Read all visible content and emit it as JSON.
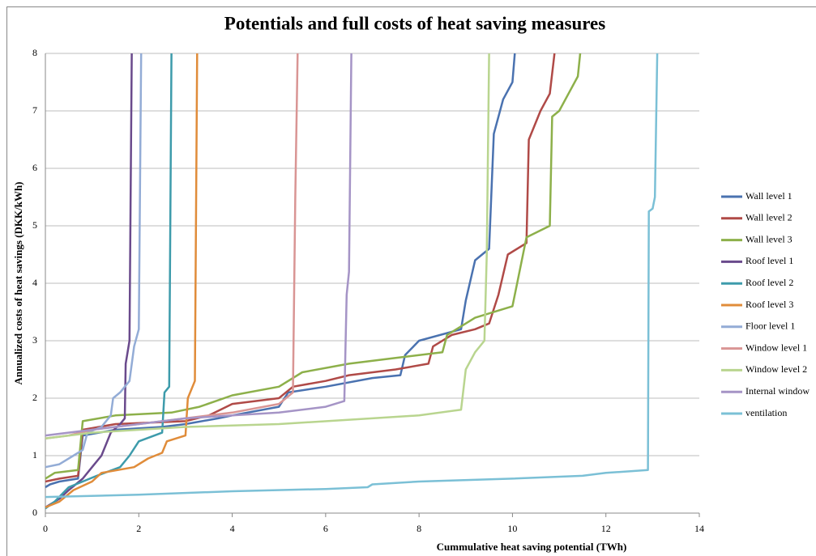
{
  "chart_data": {
    "type": "line",
    "title": "Potentials and full costs of heat saving measures",
    "x_label": "Cummulative heat saving potential (TWh)",
    "y_label": "Annualized  costs of heat savings (DKK/kWh)",
    "xlim": [
      0,
      14
    ],
    "ylim": [
      0,
      8
    ],
    "xticks": [
      0,
      2,
      4,
      6,
      8,
      10,
      12,
      14
    ],
    "yticks": [
      0,
      1,
      2,
      3,
      4,
      5,
      6,
      7,
      8
    ],
    "grid": true,
    "legend": "right",
    "series": [
      {
        "name": "Wall level 1",
        "color": "#4a72b0",
        "x": [
          0,
          0.1,
          0.3,
          0.7,
          0.8,
          1.5,
          2.5,
          3,
          3.7,
          4,
          5,
          5.2,
          6,
          7,
          7.6,
          7.7,
          8,
          8.9,
          9,
          9.2,
          9.5,
          9.6,
          9.8,
          10,
          10.05
        ],
        "values": [
          0.45,
          0.5,
          0.55,
          0.6,
          1.35,
          1.45,
          1.5,
          1.55,
          1.65,
          1.7,
          1.85,
          2.1,
          2.2,
          2.35,
          2.4,
          2.75,
          3.0,
          3.2,
          3.7,
          4.4,
          4.6,
          6.6,
          7.2,
          7.5,
          8
        ]
      },
      {
        "name": "Wall level 2",
        "color": "#b04a47",
        "x": [
          0,
          0.3,
          0.7,
          0.8,
          1.5,
          3,
          3.5,
          4,
          5,
          5.3,
          6,
          6.5,
          7.5,
          8.2,
          8.3,
          8.7,
          9.2,
          9.5,
          9.7,
          9.9,
          10.3,
          10.35,
          10.6,
          10.8,
          10.9
        ],
        "values": [
          0.55,
          0.6,
          0.65,
          1.45,
          1.55,
          1.6,
          1.7,
          1.9,
          2.0,
          2.2,
          2.3,
          2.4,
          2.5,
          2.6,
          2.9,
          3.1,
          3.2,
          3.3,
          3.8,
          4.5,
          4.7,
          6.5,
          7.0,
          7.3,
          8
        ]
      },
      {
        "name": "Wall level 3",
        "color": "#8db04a",
        "x": [
          0,
          0.2,
          0.7,
          0.8,
          1.5,
          2.7,
          3.3,
          4,
          5,
          5.5,
          6.5,
          7.5,
          8.5,
          8.6,
          9,
          9.2,
          10,
          10.1,
          10.3,
          10.8,
          10.85,
          11,
          11.2,
          11.4,
          11.45
        ],
        "values": [
          0.6,
          0.7,
          0.75,
          1.6,
          1.7,
          1.75,
          1.85,
          2.05,
          2.2,
          2.45,
          2.6,
          2.7,
          2.8,
          3.1,
          3.3,
          3.4,
          3.6,
          4.0,
          4.8,
          5.0,
          6.9,
          7.0,
          7.3,
          7.6,
          8
        ]
      },
      {
        "name": "Roof level 1",
        "color": "#6a4a8c",
        "x": [
          0,
          0.3,
          0.5,
          0.8,
          1,
          1.2,
          1.4,
          1.6,
          1.7,
          1.72,
          1.8,
          1.85
        ],
        "values": [
          0.1,
          0.25,
          0.4,
          0.6,
          0.8,
          1.0,
          1.4,
          1.55,
          1.65,
          2.6,
          3.0,
          8
        ]
      },
      {
        "name": "Roof level 2",
        "color": "#3d9bab",
        "x": [
          0,
          0.2,
          0.5,
          0.8,
          1.1,
          1.6,
          1.8,
          2.0,
          2.5,
          2.55,
          2.65,
          2.7
        ],
        "values": [
          0.08,
          0.2,
          0.45,
          0.55,
          0.65,
          0.8,
          1.0,
          1.25,
          1.4,
          2.1,
          2.2,
          8
        ]
      },
      {
        "name": "Roof level 3",
        "color": "#e08c3a",
        "x": [
          0,
          0.3,
          0.6,
          1,
          1.2,
          1.9,
          2.2,
          2.5,
          2.6,
          3.0,
          3.05,
          3.2,
          3.25
        ],
        "values": [
          0.1,
          0.2,
          0.4,
          0.55,
          0.7,
          0.8,
          0.95,
          1.05,
          1.25,
          1.35,
          2.0,
          2.3,
          8
        ]
      },
      {
        "name": "Floor level 1",
        "color": "#93acd6",
        "x": [
          0,
          0.3,
          0.6,
          0.8,
          0.9,
          1.2,
          1.4,
          1.45,
          1.6,
          1.8,
          1.9,
          2.0,
          2.05
        ],
        "values": [
          0.8,
          0.85,
          1.0,
          1.1,
          1.4,
          1.5,
          1.7,
          2.0,
          2.1,
          2.3,
          2.9,
          3.2,
          8
        ]
      },
      {
        "name": "Window level 1",
        "color": "#d99594",
        "x": [
          0,
          0.5,
          1,
          2,
          3,
          4,
          5,
          5.3,
          5.35,
          5.4
        ],
        "values": [
          1.3,
          1.35,
          1.45,
          1.55,
          1.65,
          1.75,
          1.9,
          2.1,
          5.5,
          8
        ]
      },
      {
        "name": "Window level 2",
        "color": "#b9d58f",
        "x": [
          0,
          1,
          3,
          5,
          7,
          8,
          8.9,
          9,
          9.2,
          9.4,
          9.45,
          9.5
        ],
        "values": [
          1.3,
          1.4,
          1.5,
          1.55,
          1.65,
          1.7,
          1.8,
          2.5,
          2.8,
          3.0,
          4.5,
          8
        ]
      },
      {
        "name": "Internal window",
        "color": "#a594c6",
        "x": [
          0,
          1,
          2,
          3,
          4,
          5,
          6,
          6.4,
          6.45,
          6.5,
          6.55
        ],
        "values": [
          1.35,
          1.45,
          1.55,
          1.65,
          1.7,
          1.75,
          1.85,
          1.95,
          3.8,
          4.2,
          8
        ]
      },
      {
        "name": "ventilation",
        "color": "#7bc0d6",
        "x": [
          0,
          2,
          4,
          6,
          6.9,
          7,
          8,
          10,
          11.5,
          12,
          12.9,
          12.92,
          13,
          13.05,
          13.1
        ],
        "values": [
          0.28,
          0.32,
          0.38,
          0.42,
          0.45,
          0.5,
          0.55,
          0.6,
          0.65,
          0.7,
          0.75,
          5.25,
          5.3,
          5.5,
          8
        ]
      }
    ]
  }
}
